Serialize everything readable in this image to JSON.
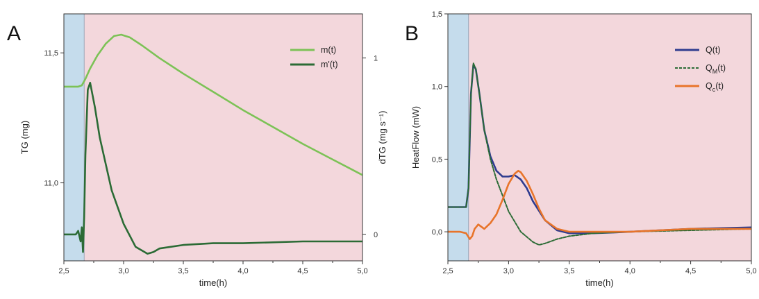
{
  "chart_data": [
    {
      "panel": "A",
      "type": "line",
      "title": "",
      "xlabel": "time(h)",
      "ylabel": "TG (mg)",
      "ylabel_right": "dTG (mg s⁻¹)",
      "xlim": [
        2.5,
        5.0
      ],
      "ylim": [
        10.7,
        11.65
      ],
      "ylim_right": [
        -0.15,
        1.25
      ],
      "x_ticks": [
        "2,5",
        "3,0",
        "3,5",
        "4,0",
        "4,5",
        "5,0"
      ],
      "y_ticks": [
        "11,0",
        "11,5"
      ],
      "y_ticks_right": [
        "0",
        "1"
      ],
      "shaded_regions": [
        {
          "from": 2.5,
          "to": 2.67,
          "color": "#c5dcec"
        },
        {
          "from": 2.67,
          "to": 5.0,
          "color": "#f3d7dc"
        }
      ],
      "legend_position": "top-right",
      "series": [
        {
          "name": "m(t)",
          "axis": "left",
          "color": "#7cc256",
          "x": [
            2.5,
            2.62,
            2.65,
            2.68,
            2.72,
            2.78,
            2.85,
            2.92,
            2.98,
            3.05,
            3.15,
            3.3,
            3.5,
            3.75,
            4.0,
            4.25,
            4.5,
            4.75,
            5.0
          ],
          "values": [
            11.37,
            11.37,
            11.375,
            11.4,
            11.44,
            11.49,
            11.535,
            11.565,
            11.57,
            11.56,
            11.53,
            11.48,
            11.42,
            11.35,
            11.28,
            11.215,
            11.15,
            11.09,
            11.03
          ]
        },
        {
          "name": "m'(t)",
          "axis": "right",
          "color": "#2b6b35",
          "x": [
            2.5,
            2.6,
            2.62,
            2.64,
            2.65,
            2.66,
            2.67,
            2.68,
            2.7,
            2.72,
            2.76,
            2.8,
            2.9,
            3.0,
            3.1,
            3.2,
            3.25,
            3.3,
            3.5,
            3.75,
            4.0,
            4.5,
            4.8,
            5.0
          ],
          "values": [
            0.0,
            0.0,
            0.02,
            -0.04,
            0.04,
            -0.1,
            0.1,
            0.45,
            0.82,
            0.86,
            0.72,
            0.55,
            0.25,
            0.06,
            -0.07,
            -0.11,
            -0.1,
            -0.08,
            -0.06,
            -0.05,
            -0.05,
            -0.04,
            -0.04,
            -0.04
          ]
        }
      ]
    },
    {
      "panel": "B",
      "type": "line",
      "title": "",
      "xlabel": "time(h)",
      "ylabel": "HeatFlow (mW)",
      "xlim": [
        2.5,
        5.0
      ],
      "ylim": [
        -0.2,
        1.5
      ],
      "x_ticks": [
        "2,5",
        "3,0",
        "3,5",
        "4,0",
        "4,5",
        "5,0"
      ],
      "y_ticks": [
        "0,0",
        "0,5",
        "1,0",
        "1,5"
      ],
      "shaded_regions": [
        {
          "from": 2.5,
          "to": 2.67,
          "color": "#c5dcec"
        },
        {
          "from": 2.67,
          "to": 5.0,
          "color": "#f3d7dc"
        }
      ],
      "legend_position": "top-right",
      "series": [
        {
          "name": "Q(t)",
          "color": "#2f3c8f",
          "style": "solid",
          "x": [
            2.5,
            2.65,
            2.67,
            2.69,
            2.71,
            2.73,
            2.76,
            2.8,
            2.85,
            2.9,
            2.95,
            3.0,
            3.05,
            3.1,
            3.15,
            3.2,
            3.3,
            3.4,
            3.5,
            3.7,
            4.0,
            4.5,
            5.0
          ],
          "values": [
            0.17,
            0.17,
            0.3,
            0.95,
            1.15,
            1.12,
            0.95,
            0.7,
            0.52,
            0.42,
            0.38,
            0.38,
            0.39,
            0.36,
            0.3,
            0.21,
            0.08,
            0.01,
            -0.01,
            -0.01,
            0.0,
            0.02,
            0.03
          ]
        },
        {
          "name": "Q_M(t)",
          "color": "#2b6b35",
          "style": "dashed",
          "x": [
            2.5,
            2.65,
            2.67,
            2.69,
            2.71,
            2.73,
            2.76,
            2.8,
            2.85,
            2.9,
            2.95,
            3.0,
            3.1,
            3.2,
            3.25,
            3.3,
            3.4,
            3.5,
            3.7,
            4.0,
            4.5,
            5.0
          ],
          "values": [
            0.17,
            0.17,
            0.3,
            0.95,
            1.16,
            1.12,
            0.95,
            0.7,
            0.5,
            0.36,
            0.25,
            0.14,
            0.0,
            -0.07,
            -0.09,
            -0.08,
            -0.05,
            -0.03,
            -0.01,
            0.0,
            0.01,
            0.02
          ]
        },
        {
          "name": "Q_c(t)",
          "color": "#e8742a",
          "style": "solid",
          "x": [
            2.5,
            2.6,
            2.65,
            2.68,
            2.7,
            2.72,
            2.75,
            2.8,
            2.85,
            2.9,
            2.95,
            3.0,
            3.05,
            3.08,
            3.1,
            3.15,
            3.2,
            3.25,
            3.3,
            3.4,
            3.5,
            3.7,
            4.0,
            4.5,
            5.0
          ],
          "values": [
            0.0,
            0.0,
            -0.01,
            -0.05,
            -0.03,
            0.02,
            0.05,
            0.02,
            0.06,
            0.12,
            0.22,
            0.33,
            0.4,
            0.42,
            0.41,
            0.35,
            0.26,
            0.16,
            0.08,
            0.02,
            0.0,
            0.0,
            0.0,
            0.02,
            0.02
          ]
        }
      ]
    }
  ]
}
